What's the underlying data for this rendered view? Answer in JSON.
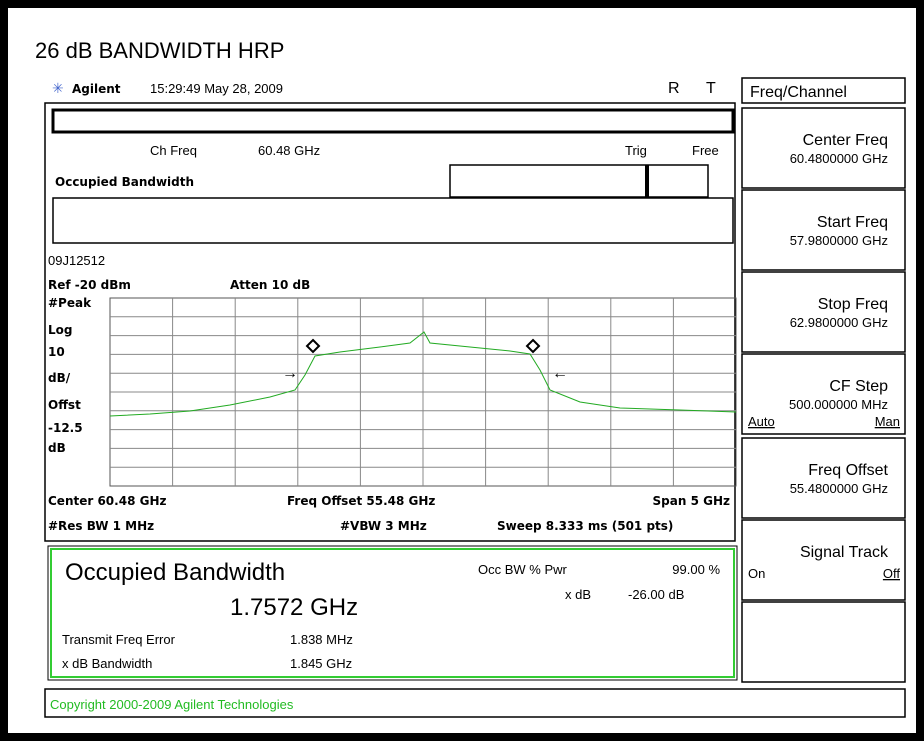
{
  "title": "26 dB BANDWIDTH HRP",
  "header": {
    "brand": "Agilent",
    "timestamp": "15:29:49 May 28, 2009",
    "flag_r": "R",
    "flag_t": "T"
  },
  "status": {
    "ch_freq_label": "Ch Freq",
    "ch_freq": "60.48 GHz",
    "trig_label": "Trig",
    "trig": "Free",
    "mode": "Occupied Bandwidth"
  },
  "trace_info": {
    "id": "09J12512",
    "ref": "Ref -20 dBm",
    "atten": "Atten 10 dB",
    "scale": [
      "#Peak",
      "Log",
      "10",
      "dB/",
      "Offst",
      "-12.5",
      "dB"
    ],
    "center": "Center 60.48 GHz",
    "offset": "Freq Offset 55.48 GHz",
    "span": "Span 5 GHz",
    "res_bw": "#Res BW 1 MHz",
    "vbw": "#VBW 3 MHz",
    "sweep": "Sweep 8.333 ms (501 pts)"
  },
  "result": {
    "title": "Occupied Bandwidth",
    "value": "1.7572 GHz",
    "occ_label": "Occ BW % Pwr",
    "occ_value": "99.00 %",
    "xdb_label": "x dB",
    "xdb_value": "-26.00 dB",
    "tfe_label": "Transmit Freq Error",
    "tfe_value": "1.838 MHz",
    "xbw_label": "x dB Bandwidth",
    "xbw_value": "1.845 GHz"
  },
  "copyright": "Copyright 2000-2009 Agilent Technologies",
  "menu": {
    "title": "Freq/Channel",
    "keys": [
      {
        "label": "Center Freq",
        "value": "60.4800000 GHz"
      },
      {
        "label": "Start Freq",
        "value": "57.9800000 GHz"
      },
      {
        "label": "Stop Freq",
        "value": "62.9800000 GHz"
      },
      {
        "label": "CF Step",
        "value": "500.000000 MHz",
        "left": "Auto",
        "right": "Man"
      },
      {
        "label": "Freq Offset",
        "value": "55.4800000 GHz"
      },
      {
        "label": "Signal Track",
        "left": "On",
        "right": "Off"
      }
    ]
  }
}
